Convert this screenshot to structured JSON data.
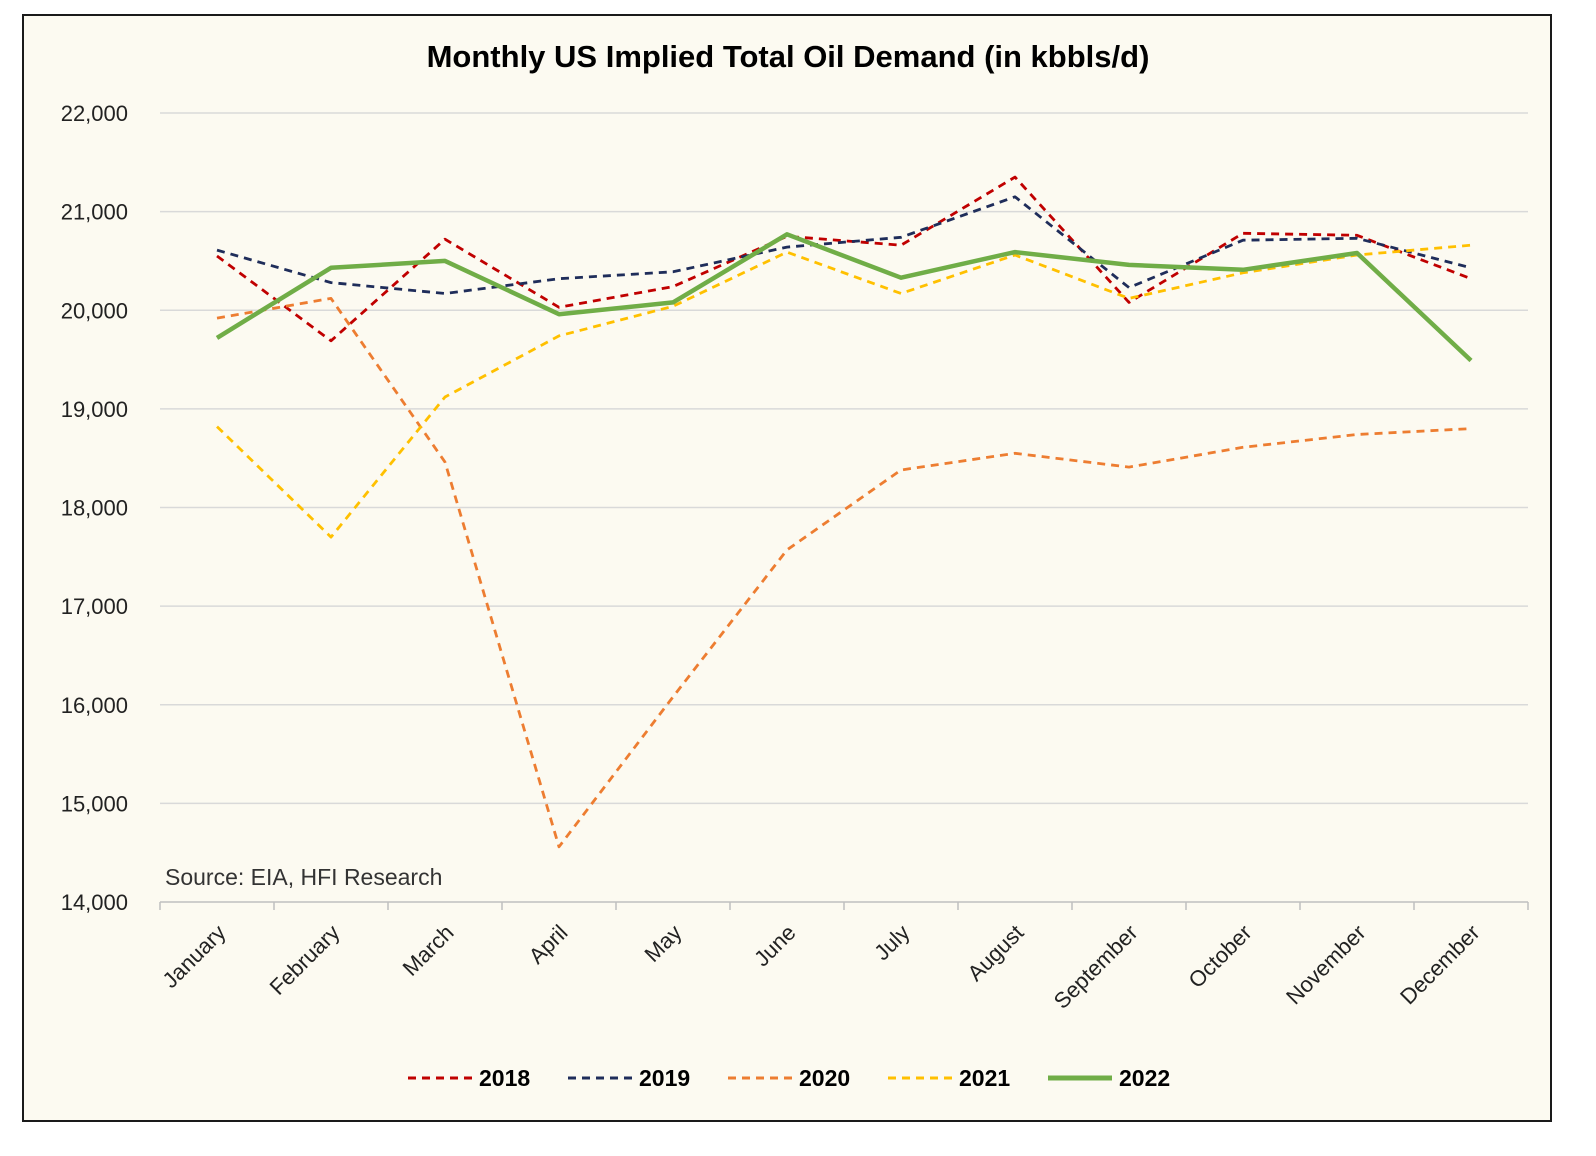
{
  "chart_data": {
    "type": "line",
    "title": "Monthly US Implied Total Oil Demand (in kbbls/d)",
    "source_note": "Source: EIA, HFI Research",
    "categories": [
      "January",
      "February",
      "March",
      "April",
      "May",
      "June",
      "July",
      "August",
      "September",
      "October",
      "November",
      "December"
    ],
    "ylim": [
      14000,
      22000
    ],
    "yticks": [
      14000,
      15000,
      16000,
      17000,
      18000,
      19000,
      20000,
      21000,
      22000
    ],
    "ytick_labels": [
      "14,000",
      "15,000",
      "16,000",
      "17,000",
      "18,000",
      "19,000",
      "20,000",
      "21,000",
      "22,000"
    ],
    "grid": true,
    "legend_position": "bottom",
    "series": [
      {
        "name": "2018",
        "color": "#c00000",
        "style": "dashed",
        "values": [
          20550,
          19690,
          20720,
          20030,
          20240,
          20750,
          20660,
          21350,
          20080,
          20780,
          20760,
          20320
        ]
      },
      {
        "name": "2019",
        "color": "#1f2d5a",
        "style": "dashed",
        "values": [
          20610,
          20280,
          20170,
          20320,
          20390,
          20640,
          20740,
          21150,
          20230,
          20710,
          20730,
          20430
        ]
      },
      {
        "name": "2020",
        "color": "#ed7d31",
        "style": "dashed",
        "values": [
          19920,
          20120,
          18460,
          14560,
          16080,
          17570,
          18380,
          18550,
          18410,
          18610,
          18740,
          18800
        ]
      },
      {
        "name": "2021",
        "color": "#ffc000",
        "style": "dashed",
        "values": [
          18820,
          17700,
          19120,
          19740,
          20040,
          20590,
          20170,
          20560,
          20120,
          20380,
          20560,
          20660
        ]
      },
      {
        "name": "2022",
        "color": "#70ad47",
        "style": "solid",
        "values": [
          19720,
          20430,
          20500,
          19960,
          20080,
          20770,
          20330,
          20590,
          20460,
          20410,
          20580,
          19490
        ]
      }
    ]
  }
}
